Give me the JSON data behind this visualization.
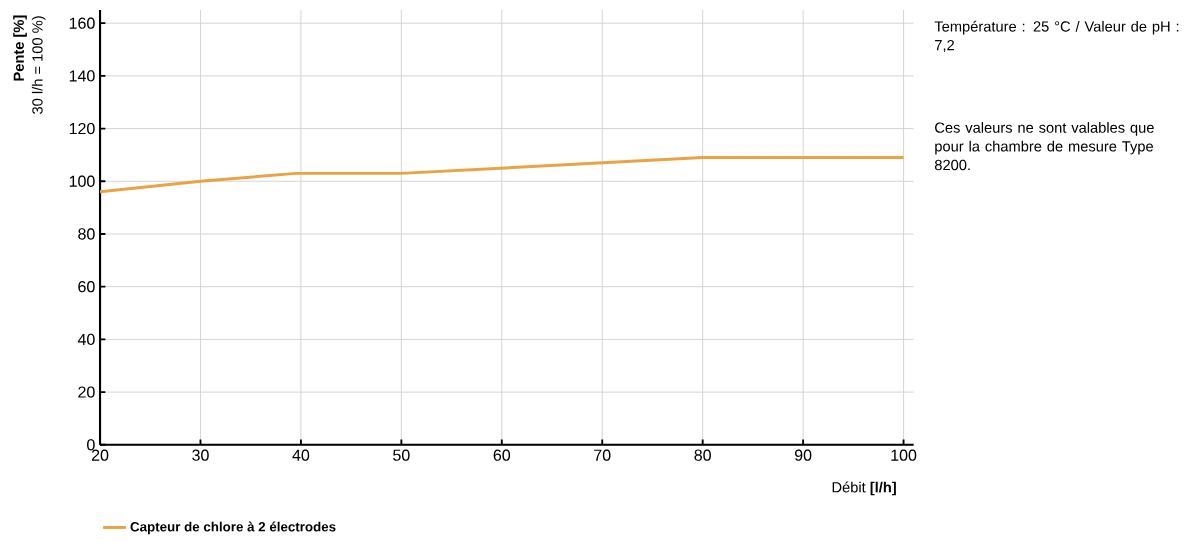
{
  "chart_data": {
    "type": "line",
    "xlabel": "Débit **[l/h]**",
    "ylabel": "**Pente [%]**",
    "annotations": [
      "30 l/h = 100 %)",
      "Température : 25 °C / Valeur de pH : 7,2",
      "Ces valeurs ne sont valables que pour la chambre de mesure Type 8200."
    ],
    "x": [
      20,
      30,
      39.5,
      50,
      60,
      70,
      80,
      90,
      100
    ],
    "series": [
      {
        "name": "Capteur de chlore à 2 électrodes",
        "color": "#e8a443",
        "values": [
          96,
          100,
          103,
          103,
          105,
          107,
          109,
          109,
          109
        ]
      }
    ],
    "xlim": [
      20,
      101
    ],
    "ylim": [
      0,
      165
    ],
    "xticks": [
      20,
      30,
      40,
      50,
      60,
      70,
      80,
      90,
      100
    ],
    "yticks": [
      0,
      20,
      40,
      60,
      80,
      100,
      120,
      140,
      160
    ],
    "grid": true,
    "legend": "bottom",
    "marker": "none",
    "line_style": "solid"
  }
}
